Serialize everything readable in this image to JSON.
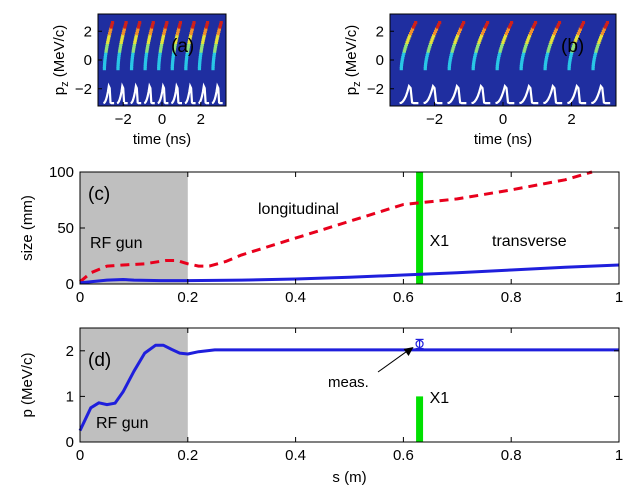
{
  "chart_data": [
    {
      "id": "a",
      "type": "heatmap",
      "panel_label": "(a)",
      "xlabel": "time (ns)",
      "ylabel_base": "p",
      "ylabel_sub": "z",
      "ylabel_unit": " (MeV/c)",
      "xlim": [
        -3.3,
        3.3
      ],
      "ylim": [
        -3.2,
        3.2
      ],
      "xticks": [
        -2,
        0,
        2
      ],
      "yticks": [
        2,
        0,
        -2
      ],
      "background": "#1f2ea0",
      "bunch_times": [
        -2.97,
        -2.27,
        -1.57,
        -0.87,
        -0.17,
        0.53,
        1.23,
        1.93,
        2.63
      ],
      "bunch_momentum_range": [
        0.2,
        2.6
      ],
      "trace_color": "#ffffff"
    },
    {
      "id": "b",
      "type": "heatmap",
      "panel_label": "(b)",
      "xlabel": "time (ns)",
      "ylabel_base": "p",
      "ylabel_sub": "z",
      "ylabel_unit": " (MeV/c)",
      "xlim": [
        -3.3,
        3.3
      ],
      "ylim": [
        -3.2,
        3.2
      ],
      "xticks": [
        -2,
        0,
        2
      ],
      "yticks": [
        2,
        0,
        -2
      ],
      "background": "#1f2ea0",
      "bunch_times": [
        -2.97,
        -2.27,
        -1.57,
        -0.87,
        -0.17,
        0.53,
        1.23,
        1.93,
        2.63
      ],
      "bunch_momentum_range": [
        0.2,
        2.6
      ],
      "trace_color": "#ffffff"
    },
    {
      "id": "c",
      "type": "line",
      "panel_label": "(c)",
      "xlabel": "",
      "ylabel": "size (mm)",
      "xlim": [
        0,
        1
      ],
      "ylim": [
        0,
        100
      ],
      "xticks": [
        0,
        0.2,
        0.4,
        0.6,
        0.8,
        1
      ],
      "xtick_labels": [
        "0",
        "0.2",
        "0.4",
        "0.6",
        "0.8",
        "1"
      ],
      "yticks": [
        0,
        50,
        100
      ],
      "shade": {
        "x": [
          0,
          0.2
        ],
        "label": "RF gun",
        "color": "#bfbfbf"
      },
      "marker": {
        "x": 0.63,
        "y": [
          0,
          100
        ],
        "label": "X1",
        "color": "#00e000"
      },
      "series": [
        {
          "name": "longitudinal",
          "color": "#e8001c",
          "dash": true,
          "x": [
            0,
            0.02,
            0.05,
            0.08,
            0.12,
            0.16,
            0.18,
            0.2,
            0.22,
            0.24,
            0.27,
            0.3,
            0.4,
            0.5,
            0.6,
            0.7,
            0.8,
            0.9,
            0.95
          ],
          "y": [
            2,
            10,
            16,
            17,
            18,
            21,
            21,
            18,
            16,
            16,
            20,
            26,
            41,
            56,
            71,
            76,
            84,
            93,
            100
          ]
        },
        {
          "name": "transverse",
          "color": "#1f1fdc",
          "dash": false,
          "x": [
            0,
            0.02,
            0.05,
            0.08,
            0.1,
            0.15,
            0.2,
            0.3,
            0.4,
            0.5,
            0.6,
            0.7,
            0.8,
            0.9,
            1.0
          ],
          "y": [
            1,
            2,
            3.5,
            4,
            3.5,
            3,
            3,
            3.5,
            4.5,
            6,
            8,
            10,
            12.5,
            15,
            17
          ]
        }
      ]
    },
    {
      "id": "d",
      "type": "line",
      "panel_label": "(d)",
      "xlabel": "s (m)",
      "ylabel": "p (MeV/c)",
      "xlim": [
        0,
        1
      ],
      "ylim": [
        0,
        2.5
      ],
      "xticks": [
        0,
        0.2,
        0.4,
        0.6,
        0.8,
        1
      ],
      "xtick_labels": [
        "0",
        "0.2",
        "0.4",
        "0.6",
        "0.8",
        "1"
      ],
      "yticks": [
        0,
        1,
        2
      ],
      "shade": {
        "x": [
          0,
          0.2
        ],
        "label": "RF gun",
        "color": "#bfbfbf"
      },
      "marker": {
        "x": 0.63,
        "y": [
          0,
          1.0
        ],
        "label": "X1",
        "color": "#00e000"
      },
      "measurement": {
        "label": "meas.",
        "x": 0.63,
        "y": 2.15,
        "err": 0.2
      },
      "series": [
        {
          "name": "",
          "color": "#1f1fdc",
          "dash": false,
          "x": [
            0,
            0.01,
            0.02,
            0.035,
            0.05,
            0.065,
            0.08,
            0.1,
            0.12,
            0.14,
            0.155,
            0.17,
            0.185,
            0.2,
            0.22,
            0.25,
            0.3,
            0.4,
            0.6,
            0.8,
            1.0
          ],
          "y": [
            0.25,
            0.5,
            0.75,
            0.86,
            0.82,
            0.85,
            1.1,
            1.55,
            1.95,
            2.12,
            2.12,
            2.03,
            1.95,
            1.93,
            1.98,
            2.02,
            2.02,
            2.02,
            2.02,
            2.02,
            2.02
          ]
        }
      ]
    }
  ],
  "colors": {
    "axis": "#000000",
    "heat_low": "#1f2ea0",
    "heat_mid": "#29c6e6",
    "heat_high": "#f0902c",
    "heat_peak": "#d0201a"
  }
}
